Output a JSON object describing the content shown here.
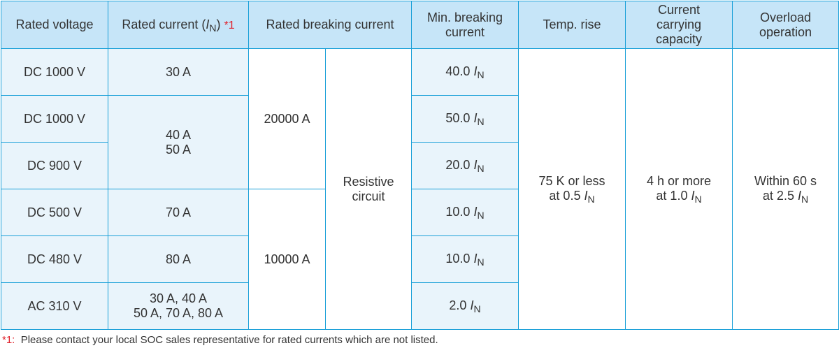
{
  "header": {
    "rated_voltage": "Rated voltage",
    "rated_current": "Rated current (",
    "rated_current_symbol": "I",
    "rated_current_sub": "N",
    "rated_current_close": ")",
    "rated_current_ref": "*1",
    "rated_breaking": "Rated breaking current",
    "min_breaking_line1": "Min. breaking",
    "min_breaking_line2": "current",
    "temp_rise": "Temp. rise",
    "current_carrying_line1": "Current",
    "current_carrying_line2": "carrying",
    "current_carrying_line3": "capacity",
    "overload_line1": "Overload",
    "overload_line2": "operation"
  },
  "rows": [
    {
      "voltage": "DC 1000 V",
      "min_breaking_value": "40.0",
      "min_breaking_symbol": "I",
      "min_breaking_sub": "N"
    },
    {
      "voltage": "DC 1000 V",
      "min_breaking_value": "50.0",
      "min_breaking_symbol": "I",
      "min_breaking_sub": "N"
    },
    {
      "voltage": "DC 900 V",
      "min_breaking_value": "20.0",
      "min_breaking_symbol": "I",
      "min_breaking_sub": "N"
    },
    {
      "voltage": "DC 500 V",
      "min_breaking_value": "10.0",
      "min_breaking_symbol": "I",
      "min_breaking_sub": "N"
    },
    {
      "voltage": "DC 480 V",
      "min_breaking_value": "10.0",
      "min_breaking_symbol": "I",
      "min_breaking_sub": "N"
    },
    {
      "voltage": "AC 310 V",
      "min_breaking_value": "2.0",
      "min_breaking_symbol": "I",
      "min_breaking_sub": "N"
    }
  ],
  "rated_currents": {
    "c30": "30 A",
    "c40_line1": "40 A",
    "c40_line2": "50 A",
    "c70": "70 A",
    "c80": "80 A",
    "ac_line1": "30 A, 40 A",
    "ac_line2": "50 A, 70 A, 80 A"
  },
  "rated_breaking": {
    "upper": "20000 A",
    "lower": "10000 A",
    "circuit_line1": "Resistive",
    "circuit_line2": "circuit"
  },
  "temp_rise": {
    "line1": "75 K or less",
    "line2_prefix": "at 0.5 ",
    "symbol": "I",
    "sub": "N"
  },
  "current_carrying": {
    "line1": "4 h or more",
    "line2_prefix": "at 1.0 ",
    "symbol": "I",
    "sub": "N"
  },
  "overload": {
    "line1": "Within 60 s",
    "line2_prefix": "at 2.5 ",
    "symbol": "I",
    "sub": "N"
  },
  "footnote": {
    "ref": "*1:",
    "text": "Please contact your local SOC sales representative for rated currents which are not listed."
  },
  "colors": {
    "border": "#1aa0d8",
    "header_bg": "#c6e5f8",
    "shaded_cell": "#e9f4fb",
    "text": "#333333",
    "reference_red": "#e0202a"
  }
}
